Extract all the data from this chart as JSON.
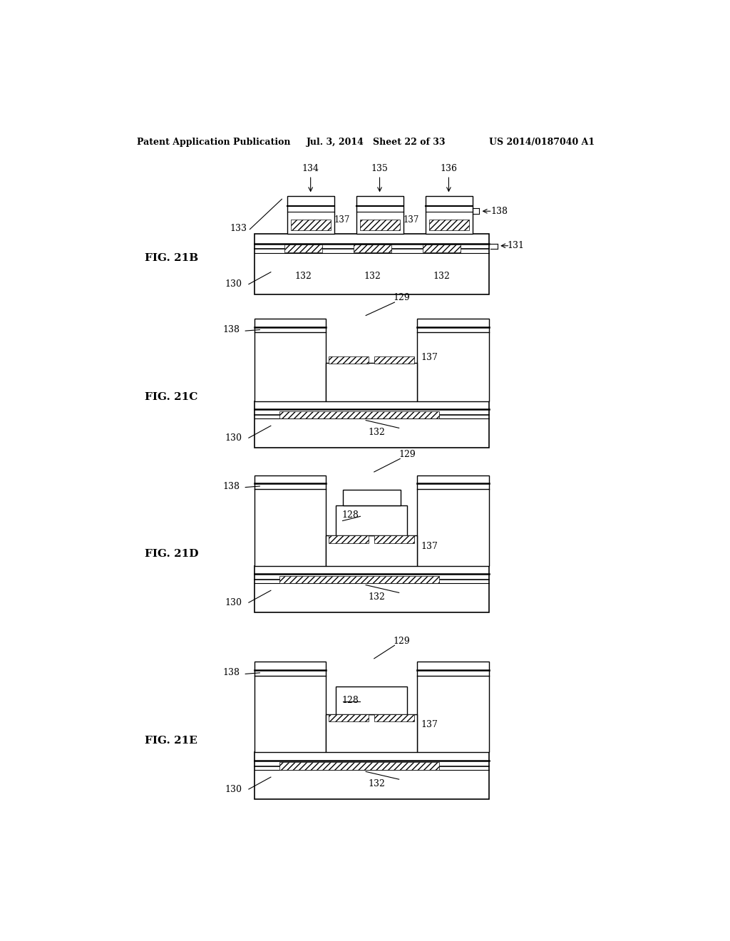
{
  "bg_color": "#ffffff",
  "header_left": "Patent Application Publication",
  "header_mid": "Jul. 3, 2014   Sheet 22 of 33",
  "header_right": "US 2014/0187040 A1"
}
